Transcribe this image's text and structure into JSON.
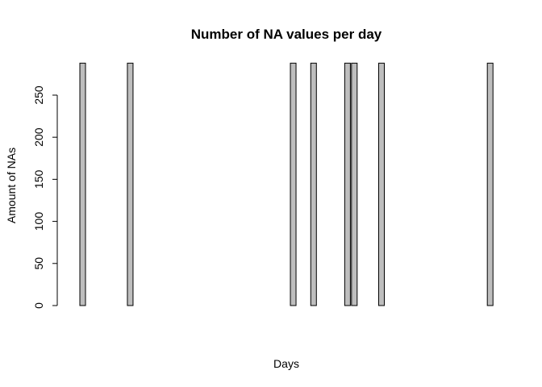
{
  "chart_data": {
    "type": "bar",
    "title": "Number of NA values per day",
    "x_label": "Days",
    "y_label": "Amount of NAs",
    "categories": [
      null,
      null,
      null,
      null,
      null,
      null,
      null,
      null,
      null,
      null,
      null,
      null,
      null,
      null,
      null,
      null,
      null,
      null,
      null,
      null,
      null,
      null,
      null,
      null,
      null,
      null,
      null,
      null,
      null,
      null,
      null,
      null,
      null,
      null,
      null,
      null,
      null,
      null,
      null,
      null,
      null,
      null,
      null,
      null,
      null,
      null,
      null,
      null,
      null,
      null,
      null,
      null,
      null,
      null,
      null,
      null,
      null,
      null,
      null,
      null,
      null
    ],
    "values": [
      288,
      0,
      0,
      0,
      0,
      0,
      0,
      288,
      0,
      0,
      0,
      0,
      0,
      0,
      0,
      0,
      0,
      0,
      0,
      0,
      0,
      0,
      0,
      0,
      0,
      0,
      0,
      0,
      0,
      0,
      0,
      288,
      0,
      0,
      288,
      0,
      0,
      0,
      0,
      288,
      288,
      0,
      0,
      0,
      288,
      0,
      0,
      0,
      0,
      0,
      0,
      0,
      0,
      0,
      0,
      0,
      0,
      0,
      0,
      0,
      288
    ],
    "color": "#bebebe",
    "ylim": [
      -11.52,
      299.52
    ],
    "yticks": [
      0,
      50,
      100,
      150,
      200,
      250
    ],
    "grid": false
  }
}
